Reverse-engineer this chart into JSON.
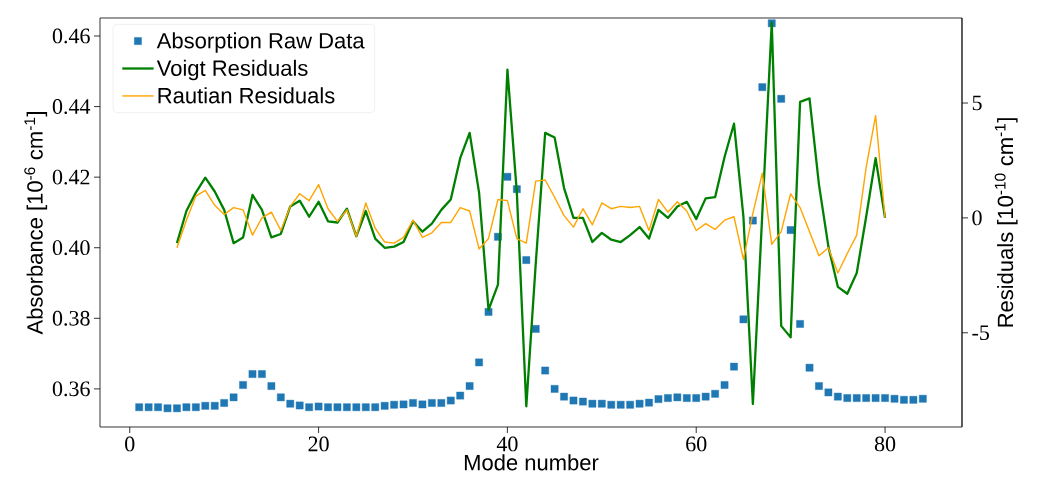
{
  "chart_data": {
    "type": "scatter",
    "xlabel": "Mode number",
    "ylabel": "Absorbance [10$^{-6}$ cm$^{-1}$]",
    "y2label": "Residuals [10$^{-10}$ cm$^{-1}$]",
    "xlim": [
      -3.15,
      88.15
    ],
    "xticks": [
      0,
      20,
      40,
      60,
      80
    ],
    "ylim": [
      0.3492,
      0.4651
    ],
    "yticks": [
      0.36,
      0.38,
      {
        "value": 0.4,
        "label": "0.40"
      },
      0.42,
      0.44,
      0.46
    ],
    "y2lim": [
      -9.1,
      8.7
    ],
    "y2ticks": [
      -5,
      0,
      5
    ],
    "legend": "top left",
    "grid": false,
    "series": [
      {
        "name": "Absorption Raw Data",
        "marker": "square",
        "color": "#1f77b4",
        "x": [
          1,
          2,
          3,
          4,
          5,
          6,
          7,
          8,
          9,
          10,
          11,
          12,
          13,
          14,
          15,
          16,
          17,
          18,
          19,
          20,
          21,
          22,
          23,
          24,
          25,
          26,
          27,
          28,
          29,
          30,
          31,
          32,
          33,
          34,
          35,
          36,
          37,
          38,
          39,
          40,
          41,
          42,
          43,
          44,
          45,
          46,
          47,
          48,
          49,
          50,
          51,
          52,
          53,
          54,
          55,
          56,
          57,
          58,
          59,
          60,
          61,
          62,
          63,
          64,
          65,
          66,
          67,
          68,
          69,
          70,
          71,
          72,
          73,
          74,
          75,
          76,
          77,
          78,
          79,
          80,
          81,
          82,
          83,
          84
        ],
        "values": [
          0.3548,
          0.3548,
          0.3548,
          0.3545,
          0.3545,
          0.3548,
          0.3548,
          0.3552,
          0.3552,
          0.356,
          0.3576,
          0.3611,
          0.3642,
          0.3642,
          0.3608,
          0.3576,
          0.3558,
          0.3553,
          0.3548,
          0.355,
          0.3548,
          0.3548,
          0.3548,
          0.3548,
          0.3548,
          0.3548,
          0.3552,
          0.3555,
          0.3556,
          0.356,
          0.3556,
          0.356,
          0.356,
          0.3567,
          0.3581,
          0.3608,
          0.3675,
          0.3818,
          0.4031,
          0.4201,
          0.4166,
          0.3965,
          0.377,
          0.3652,
          0.36,
          0.3578,
          0.3567,
          0.3564,
          0.3558,
          0.3558,
          0.3555,
          0.3555,
          0.3555,
          0.3558,
          0.3561,
          0.3571,
          0.3574,
          0.3576,
          0.3574,
          0.3574,
          0.3578,
          0.3586,
          0.3611,
          0.3663,
          0.3797,
          0.4077,
          0.4455,
          0.4636,
          0.4422,
          0.405,
          0.3784,
          0.366,
          0.3608,
          0.359,
          0.3578,
          0.3574,
          0.3574,
          0.3574,
          0.3574,
          0.3574,
          0.3572,
          0.3569,
          0.3569,
          0.3572
        ]
      },
      {
        "name": "Voigt Residuals",
        "type": "line",
        "axis": "y2",
        "marker": "none",
        "line_style": "solid",
        "color": "#008000",
        "x": [
          5,
          6,
          7,
          8,
          9,
          10,
          11,
          12,
          13,
          14,
          15,
          16,
          17,
          18,
          19,
          20,
          21,
          22,
          23,
          24,
          25,
          26,
          27,
          28,
          29,
          30,
          31,
          32,
          33,
          34,
          35,
          36,
          37,
          38,
          39,
          40,
          41,
          42,
          43,
          44,
          45,
          46,
          47,
          48,
          49,
          50,
          51,
          52,
          53,
          54,
          55,
          56,
          57,
          58,
          59,
          60,
          61,
          62,
          63,
          64,
          65,
          66,
          67,
          68,
          69,
          70,
          71,
          72,
          73,
          74,
          75,
          76,
          77,
          78,
          79,
          80
        ],
        "values": [
          -1.1,
          0.3,
          1.1,
          1.75,
          1.15,
          0.35,
          -1.1,
          -0.85,
          1.0,
          0.35,
          -0.85,
          -0.7,
          0.5,
          0.75,
          0.05,
          0.7,
          -0.15,
          -0.2,
          0.4,
          -0.8,
          0.3,
          -0.9,
          -1.3,
          -1.25,
          -1.05,
          -0.15,
          -0.6,
          -0.25,
          0.35,
          0.8,
          2.6,
          3.7,
          1.1,
          -4.0,
          -2.9,
          6.45,
          1.1,
          -8.2,
          -2.0,
          3.7,
          3.5,
          1.3,
          0,
          0,
          -1.05,
          -0.65,
          -0.95,
          -1.05,
          -0.75,
          -0.4,
          -0.9,
          0.35,
          0,
          0.5,
          0.7,
          -0.05,
          0.85,
          0.9,
          2.65,
          4.1,
          0.05,
          -8.1,
          0.2,
          8.5,
          -4.7,
          -5.2,
          5.05,
          5.2,
          1.45,
          -1.25,
          -3.0,
          -3.3,
          -2.4,
          0.05,
          2.6,
          0
        ]
      },
      {
        "name": "Rautian Residuals",
        "type": "line",
        "axis": "y2",
        "marker": "none",
        "line_style": "solid",
        "color": "#ffa500",
        "x": [
          5,
          6,
          7,
          8,
          9,
          10,
          11,
          12,
          13,
          14,
          15,
          16,
          17,
          18,
          19,
          20,
          21,
          22,
          23,
          24,
          25,
          26,
          27,
          28,
          29,
          30,
          31,
          32,
          33,
          34,
          35,
          36,
          37,
          38,
          39,
          40,
          41,
          42,
          43,
          44,
          45,
          46,
          47,
          48,
          49,
          50,
          51,
          52,
          53,
          54,
          55,
          56,
          57,
          58,
          59,
          60,
          61,
          62,
          63,
          64,
          65,
          66,
          67,
          68,
          69,
          70,
          71,
          72,
          73,
          74,
          75,
          76,
          77,
          78,
          79,
          80
        ],
        "values": [
          -1.3,
          -0.1,
          0.95,
          1.2,
          0.55,
          0.15,
          0.45,
          0.35,
          -0.75,
          0,
          0.25,
          -0.55,
          0.5,
          1.05,
          0.75,
          1.45,
          0.4,
          -0.15,
          0.35,
          -0.8,
          0.65,
          -0.45,
          -1.05,
          -1.1,
          -0.85,
          -0.1,
          -0.85,
          -0.65,
          -0.2,
          -0.2,
          0.45,
          0.3,
          -1.35,
          -0.9,
          0.8,
          0.75,
          -0.9,
          -1.1,
          1.6,
          1.65,
          0.9,
          0.1,
          -0.4,
          0.4,
          -0.3,
          0.65,
          0.4,
          0.5,
          0.45,
          0.5,
          -0.55,
          0.8,
          0.25,
          0.7,
          0.3,
          -0.55,
          -0.25,
          -0.5,
          -0.1,
          0.05,
          -1.8,
          0.2,
          1.95,
          -1.15,
          -0.6,
          1.05,
          0.45,
          -0.6,
          -1.65,
          -1.3,
          -2.4,
          -1.55,
          -0.75,
          2.2,
          4.45,
          0
        ]
      }
    ]
  }
}
